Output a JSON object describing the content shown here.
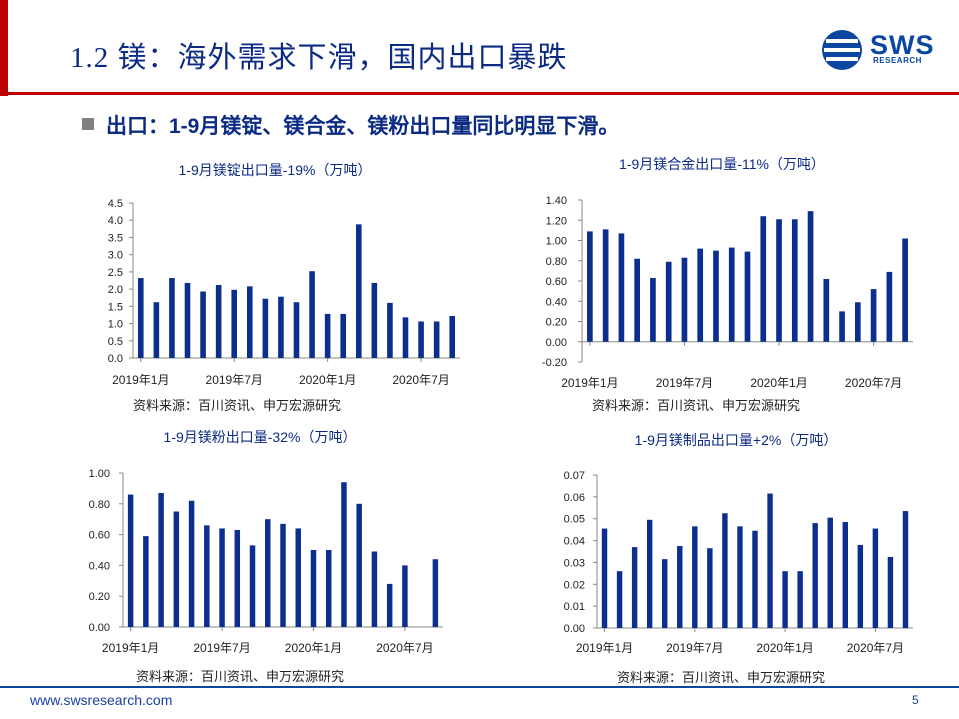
{
  "header": {
    "title": "1.2 镁：海外需求下滑，国内出口暴跌",
    "logo_text": "SWS",
    "logo_sub": "RESEARCH"
  },
  "subtitle": "出口：1-9月镁锭、镁合金、镁粉出口量同比明显下滑。",
  "colors": {
    "bar": "#0c2f8f",
    "title": "#0b2a84",
    "accent": "#c00000"
  },
  "footer": {
    "url": "www.swsresearch.com",
    "page": "5"
  },
  "charts": [
    {
      "type": "bar",
      "title": "1-9月镁锭出口量-19%（万吨）",
      "source": "资料来源：百川资讯、申万宏源研究",
      "yticks": [
        "0.0",
        "0.5",
        "1.0",
        "1.5",
        "2.0",
        "2.5",
        "3.0",
        "3.5",
        "4.0",
        "4.5"
      ],
      "ylim": [
        0,
        4.5
      ],
      "xtick_labels": [
        "2019年1月",
        "2019年7月",
        "2020年1月",
        "2020年7月"
      ],
      "xtick_index": [
        0,
        6,
        12,
        18
      ],
      "values": [
        2.32,
        1.62,
        2.32,
        2.18,
        1.93,
        2.12,
        1.98,
        2.08,
        1.72,
        1.78,
        1.62,
        2.52,
        1.28,
        1.28,
        3.88,
        2.18,
        1.6,
        1.18,
        1.06,
        1.06,
        1.22
      ]
    },
    {
      "type": "bar",
      "title": "1-9月镁合金出口量-11%（万吨）",
      "source": "资料来源：百川资讯、申万宏源研究",
      "yticks": [
        "-0.20",
        "0.00",
        "0.20",
        "0.40",
        "0.60",
        "0.80",
        "1.00",
        "1.20",
        "1.40"
      ],
      "ylim": [
        -0.2,
        1.4
      ],
      "xtick_labels": [
        "2019年1月",
        "2019年7月",
        "2020年1月",
        "2020年7月"
      ],
      "xtick_index": [
        0,
        6,
        12,
        18
      ],
      "values": [
        1.09,
        1.11,
        1.07,
        0.82,
        0.63,
        0.79,
        0.83,
        0.92,
        0.9,
        0.93,
        0.89,
        1.24,
        1.21,
        1.21,
        1.29,
        0.62,
        0.3,
        0.39,
        0.52,
        0.69,
        1.02
      ]
    },
    {
      "type": "bar",
      "title": "1-9月镁粉出口量-32%（万吨）",
      "source": "资料来源：百川资讯、申万宏源研究",
      "yticks": [
        "0.00",
        "0.20",
        "0.40",
        "0.60",
        "0.80",
        "1.00"
      ],
      "ylim": [
        0,
        1.0
      ],
      "xtick_labels": [
        "2019年1月",
        "2019年7月",
        "2020年1月",
        "2020年7月"
      ],
      "xtick_index": [
        0,
        6,
        12,
        18
      ],
      "values": [
        0.86,
        0.59,
        0.87,
        0.75,
        0.82,
        0.66,
        0.64,
        0.63,
        0.53,
        0.7,
        0.67,
        0.64,
        0.5,
        0.5,
        0.94,
        0.8,
        0.49,
        0.28,
        0.4,
        0,
        0.44
      ]
    },
    {
      "type": "bar",
      "title": "1-9月镁制品出口量+2%（万吨）",
      "source": "资料来源：百川资讯、申万宏源研究",
      "yticks": [
        "0.00",
        "0.01",
        "0.02",
        "0.03",
        "0.04",
        "0.05",
        "0.06",
        "0.07"
      ],
      "ylim": [
        0,
        0.07
      ],
      "xtick_labels": [
        "2019年1月",
        "2019年7月",
        "2020年1月",
        "2020年7月"
      ],
      "xtick_index": [
        0,
        6,
        12,
        18
      ],
      "values": [
        0.0455,
        0.026,
        0.037,
        0.0495,
        0.0315,
        0.0375,
        0.0465,
        0.0365,
        0.0525,
        0.0465,
        0.0445,
        0.0615,
        0.026,
        0.026,
        0.048,
        0.0505,
        0.0485,
        0.038,
        0.0455,
        0.0325,
        0.0535
      ]
    }
  ]
}
